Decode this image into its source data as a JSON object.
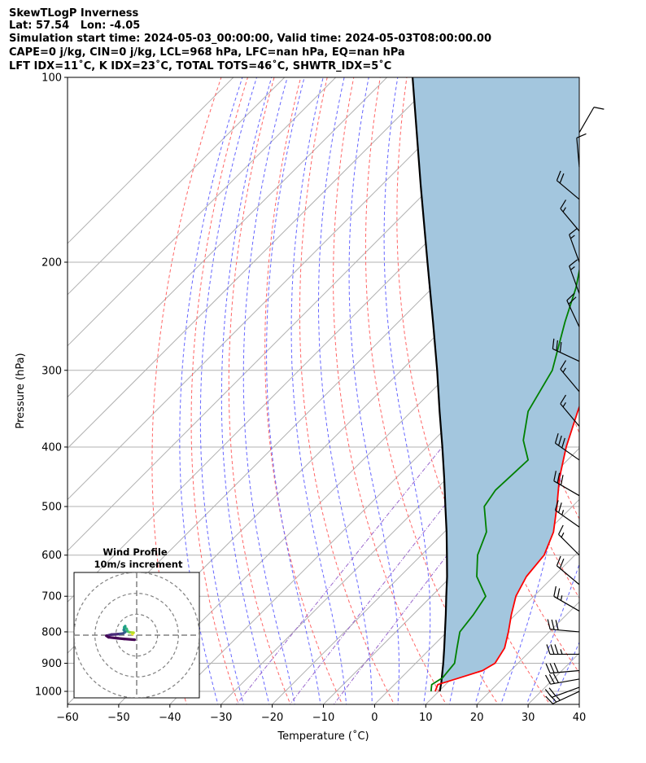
{
  "header": {
    "title": "SkewTLogP Inverness",
    "location": "Lat: 57.54   Lon: -4.05",
    "times": "Simulation start time: 2024-05-03_00:00:00, Valid time: 2024-05-03T08:00:00.00",
    "params1": "CAPE=0 j/kg, CIN=0 j/kg, LCL=968 hPa, LFC=nan hPa, EQ=nan hPa",
    "params2": "LFT IDX=11˚C, K IDX=23˚C, TOTAL TOTS=46˚C, SHWTR_IDX=5˚C"
  },
  "chart_data": {
    "type": "line",
    "xlabel": "Temperature (˚C)",
    "ylabel": "Pressure (hPa)",
    "xlim": [
      -60,
      40
    ],
    "ylim": [
      1050,
      100
    ],
    "yscale": "log",
    "x_ticks": [
      "−60",
      "−50",
      "−40",
      "−30",
      "−20",
      "−10",
      "0",
      "10",
      "20",
      "30",
      "40"
    ],
    "y_ticks": [
      "100",
      "200",
      "300",
      "400",
      "500",
      "600",
      "700",
      "800",
      "900",
      "1000"
    ],
    "y_tick_values": [
      100,
      200,
      300,
      400,
      500,
      600,
      700,
      800,
      900,
      1000
    ],
    "grid": true,
    "series": [
      {
        "role": "temperature",
        "color": "#ff0000",
        "points": [
          [
            1000,
            9.3
          ],
          [
            975,
            8.5
          ],
          [
            950,
            11.5
          ],
          [
            925,
            14.5
          ],
          [
            900,
            15.5
          ],
          [
            850,
            14.4
          ],
          [
            800,
            12.0
          ],
          [
            750,
            9.2
          ],
          [
            700,
            6.5
          ],
          [
            650,
            4.7
          ],
          [
            600,
            4.0
          ],
          [
            550,
            1.3
          ],
          [
            500,
            -3.0
          ],
          [
            450,
            -8.0
          ],
          [
            400,
            -12.8
          ],
          [
            350,
            -17.5
          ],
          [
            300,
            -22.7
          ],
          [
            250,
            -29.5
          ],
          [
            225,
            -33.4
          ],
          [
            210,
            -32.0
          ],
          [
            190,
            -33.0
          ],
          [
            175,
            -37.0
          ],
          [
            150,
            -43.5
          ],
          [
            135,
            -50.8
          ],
          [
            125,
            -51.8
          ],
          [
            115,
            -56.0
          ],
          [
            100,
            -63.0
          ]
        ]
      },
      {
        "role": "dewpoint",
        "color": "#008000",
        "points": [
          [
            1000,
            8.5
          ],
          [
            975,
            7.3
          ],
          [
            950,
            8.1
          ],
          [
            900,
            7.6
          ],
          [
            850,
            5.1
          ],
          [
            800,
            2.5
          ],
          [
            750,
            1.8
          ],
          [
            700,
            0.6
          ],
          [
            650,
            -5.0
          ],
          [
            600,
            -9.0
          ],
          [
            550,
            -11.8
          ],
          [
            500,
            -17.2
          ],
          [
            470,
            -18.2
          ],
          [
            420,
            -17.7
          ],
          [
            390,
            -22.5
          ],
          [
            350,
            -27.2
          ],
          [
            300,
            -30.5
          ],
          [
            250,
            -37.5
          ],
          [
            220,
            -42.0
          ],
          [
            200,
            -46.0
          ],
          [
            180,
            -51.5
          ],
          [
            165,
            -53.5
          ],
          [
            155,
            -57.0
          ],
          [
            140,
            -63.0
          ],
          [
            120,
            -69.0
          ],
          [
            100,
            -77.5
          ]
        ]
      },
      {
        "role": "parcel",
        "color": "#000000",
        "points": [
          [
            1000,
            10.2
          ],
          [
            968,
            8.8
          ],
          [
            900,
            5.4
          ],
          [
            850,
            2.6
          ],
          [
            800,
            -0.4
          ],
          [
            750,
            -3.6
          ],
          [
            700,
            -7.1
          ],
          [
            650,
            -10.8
          ],
          [
            600,
            -15.0
          ],
          [
            550,
            -19.6
          ],
          [
            500,
            -24.8
          ],
          [
            450,
            -30.5
          ],
          [
            400,
            -37.0
          ],
          [
            350,
            -44.5
          ],
          [
            300,
            -53.0
          ],
          [
            250,
            -63.3
          ],
          [
            200,
            -76.0
          ],
          [
            150,
            -92.3
          ],
          [
            100,
            -115.0
          ]
        ]
      }
    ],
    "wind_barbs": [
      {
        "p": 1000,
        "dir": 245,
        "spd": 25
      },
      {
        "p": 985,
        "dir": 250,
        "spd": 20
      },
      {
        "p": 955,
        "dir": 260,
        "spd": 30
      },
      {
        "p": 925,
        "dir": 265,
        "spd": 30
      },
      {
        "p": 870,
        "dir": 270,
        "spd": 35
      },
      {
        "p": 800,
        "dir": 275,
        "spd": 30
      },
      {
        "p": 740,
        "dir": 300,
        "spd": 25
      },
      {
        "p": 670,
        "dir": 310,
        "spd": 20
      },
      {
        "p": 600,
        "dir": 315,
        "spd": 15
      },
      {
        "p": 540,
        "dir": 305,
        "spd": 25
      },
      {
        "p": 480,
        "dir": 300,
        "spd": 30
      },
      {
        "p": 420,
        "dir": 305,
        "spd": 30
      },
      {
        "p": 370,
        "dir": 320,
        "spd": 15
      },
      {
        "p": 325,
        "dir": 320,
        "spd": 15
      },
      {
        "p": 290,
        "dir": 295,
        "spd": 30
      },
      {
        "p": 255,
        "dir": 335,
        "spd": 20
      },
      {
        "p": 225,
        "dir": 340,
        "spd": 15
      },
      {
        "p": 200,
        "dir": 340,
        "spd": 15
      },
      {
        "p": 178,
        "dir": 320,
        "spd": 15
      },
      {
        "p": 158,
        "dir": 310,
        "spd": 20
      },
      {
        "p": 140,
        "dir": 355,
        "spd": 10
      },
      {
        "p": 123,
        "dir": 30,
        "spd": 10
      }
    ],
    "inset": {
      "title": "Wind Profile",
      "subtitle": "10m/s increment",
      "max_radius": 30,
      "rings": [
        10,
        20,
        30
      ],
      "hodograph": [
        {
          "u": -2.0,
          "v": 0.5,
          "color": "#fde725"
        },
        {
          "u": -1.5,
          "v": 1.2,
          "color": "#fde725"
        },
        {
          "u": -3.5,
          "v": 1.4,
          "color": "#b5de2b"
        },
        {
          "u": -4.5,
          "v": 1.9,
          "color": "#6ece58"
        },
        {
          "u": -4.8,
          "v": 3.0,
          "color": "#35b779"
        },
        {
          "u": -6.0,
          "v": 3.8,
          "color": "#35b779"
        },
        {
          "u": -5.5,
          "v": 4.3,
          "color": "#35b779"
        },
        {
          "u": -6.2,
          "v": 2.5,
          "color": "#1f9e89"
        },
        {
          "u": -5.5,
          "v": 1.5,
          "color": "#26828e"
        },
        {
          "u": -6.5,
          "v": 0.8,
          "color": "#31688e"
        },
        {
          "u": -9.0,
          "v": 0.5,
          "color": "#3e4a89"
        },
        {
          "u": -12.0,
          "v": 0.3,
          "color": "#482878"
        },
        {
          "u": -14.5,
          "v": -0.3,
          "color": "#482878"
        },
        {
          "u": -13.5,
          "v": -1.0,
          "color": "#440154"
        },
        {
          "u": -9.0,
          "v": -1.5,
          "color": "#440154"
        },
        {
          "u": -6.0,
          "v": -1.8,
          "color": "#440154"
        },
        {
          "u": -1.0,
          "v": -2.2,
          "color": "#440154"
        }
      ]
    },
    "colors": {
      "temperature": "#ff0000",
      "dewpoint": "#008000",
      "parcel": "#000000",
      "cape_fill": "#a3c6de",
      "dry_adiabat": "#ff6666",
      "moist_adiabat": "#6666ff",
      "mixing_ratio": "#9966cc",
      "isotherm": "#b0b0b0"
    }
  }
}
